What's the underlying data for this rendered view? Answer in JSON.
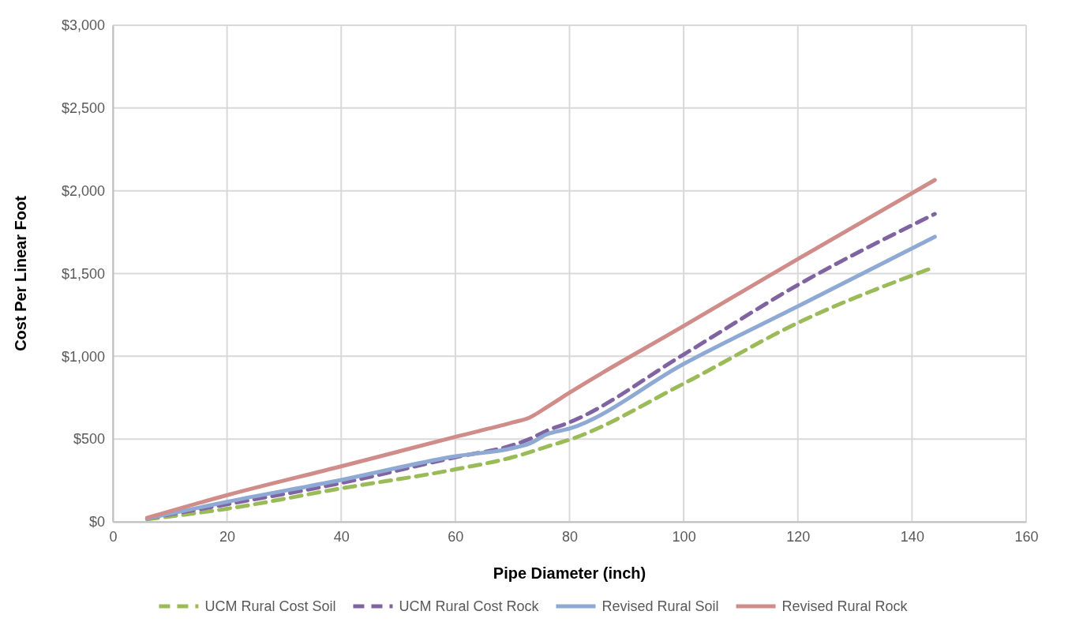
{
  "chart_data": {
    "type": "line",
    "xlabel": "Pipe Diameter (inch)",
    "ylabel": "Cost Per Linear Foot",
    "x": [
      6,
      20,
      40,
      60,
      70,
      73,
      76,
      80,
      100,
      120,
      144
    ],
    "series": [
      {
        "name": "UCM Rural Cost Soil",
        "color": "#9bbb59",
        "line_style": "dashed",
        "values": [
          15,
          79,
          202,
          317,
          390,
          420,
          454,
          496,
          835,
          1202,
          1540
        ]
      },
      {
        "name": "UCM Rural Cost Rock",
        "color": "#8064a2",
        "line_style": "dashed",
        "values": [
          20,
          106,
          234,
          390,
          463,
          500,
          550,
          601,
          1011,
          1431,
          1860
        ]
      },
      {
        "name": "Revised Rural Soil",
        "color": "#8eaad4",
        "line_style": "solid",
        "values": [
          20,
          121,
          253,
          396,
          445,
          473,
          528,
          563,
          954,
          1302,
          1722
        ]
      },
      {
        "name": "Revised Rural Rock",
        "color": "#d08c89",
        "line_style": "solid",
        "values": [
          24,
          161,
          335,
          513,
          600,
          630,
          692,
          780,
          1183,
          1588,
          2065
        ]
      }
    ],
    "xlim": [
      0,
      160
    ],
    "xticks": [
      0,
      20,
      40,
      60,
      80,
      100,
      120,
      140,
      160
    ],
    "ylim": [
      0,
      3000
    ],
    "yticks": [
      {
        "value": 0,
        "label": "$0"
      },
      {
        "value": 500,
        "label": "$500"
      },
      {
        "value": 1000,
        "label": "$1,000"
      },
      {
        "value": 1500,
        "label": "$1,500"
      },
      {
        "value": 2000,
        "label": "$2,000"
      },
      {
        "value": 2500,
        "label": "$2,500"
      },
      {
        "value": 3000,
        "label": "$3,000"
      }
    ],
    "grid": true,
    "legend": "bottom",
    "marker": "none"
  }
}
